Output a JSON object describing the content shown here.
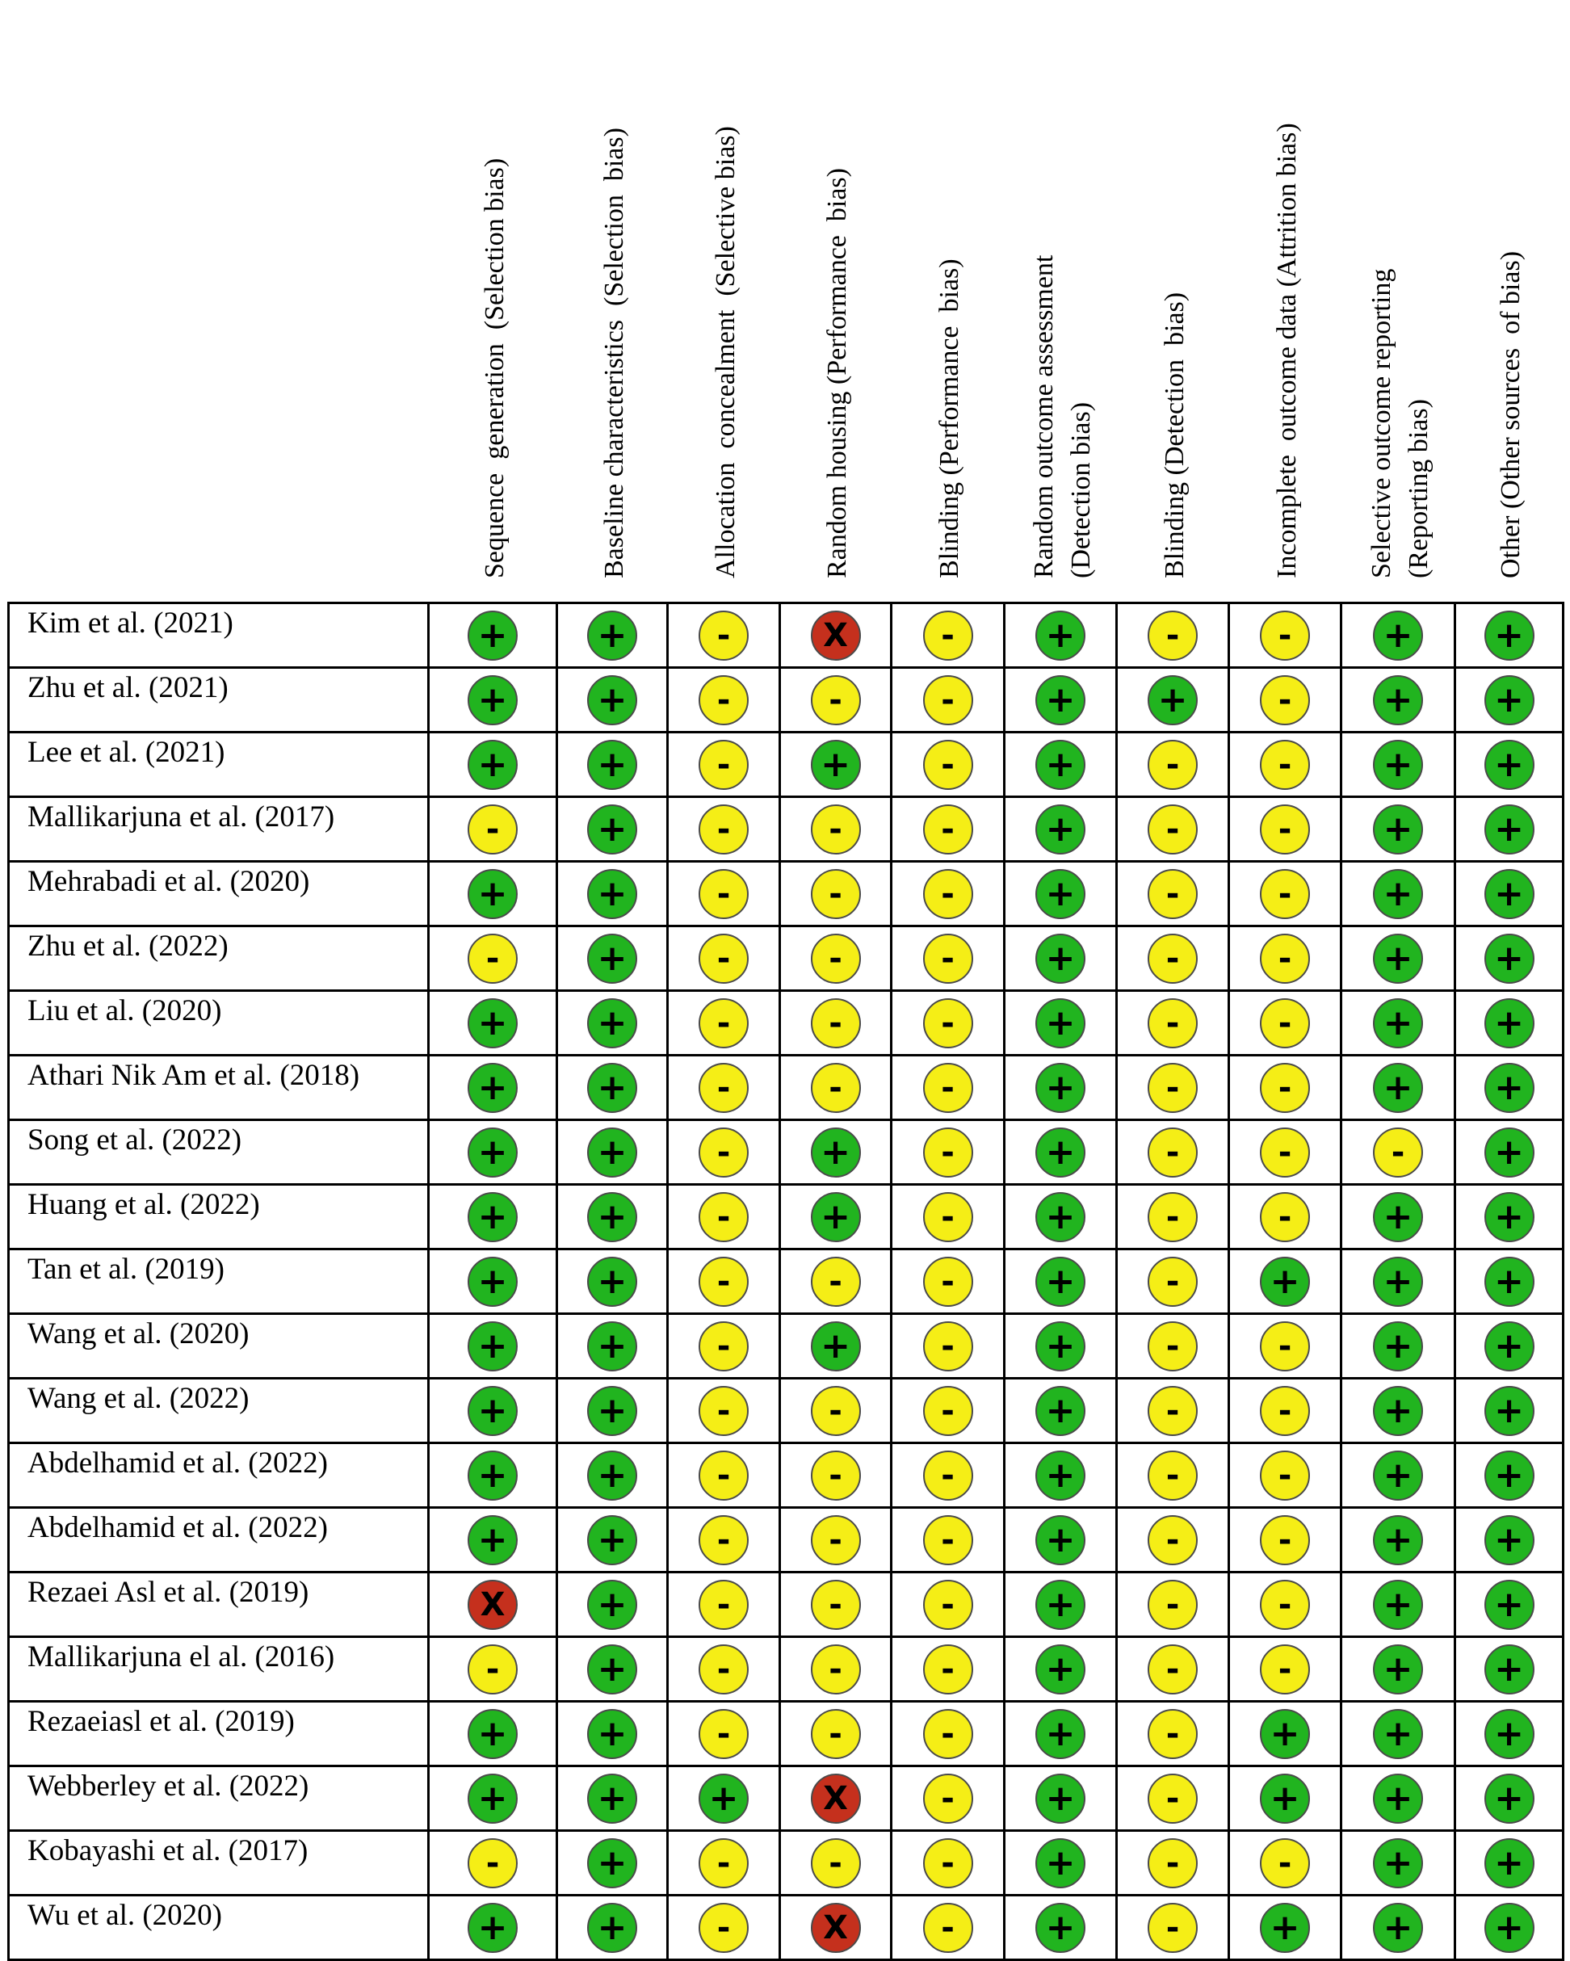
{
  "domains": [
    {
      "line1": "Sequence  generation  (Selection bias)",
      "line2": ""
    },
    {
      "line1": "Baseline characteristics  (Selection  bias)",
      "line2": ""
    },
    {
      "line1": "Allocation  concealment  (Selective bias)",
      "line2": ""
    },
    {
      "line1": "Random housing (Performance  bias)",
      "line2": ""
    },
    {
      "line1": "Blinding (Performance  bias)",
      "line2": ""
    },
    {
      "line1": "Random outcome assessment",
      "line2": "(Detection bias)"
    },
    {
      "line1": "Blinding (Detection  bias)",
      "line2": ""
    },
    {
      "line1": "Incomplete  outcome data (Attrition bias)",
      "line2": ""
    },
    {
      "line1": "Selective outcome reporting",
      "line2": "(Reporting bias)"
    },
    {
      "line1": "Other (Other sources  of bias)",
      "line2": ""
    }
  ],
  "symbols": {
    "low": "+",
    "unclear": "-",
    "high": "X"
  },
  "colors": {
    "low": "#21b41f",
    "unclear": "#f5ee16",
    "high": "#c5301d"
  },
  "studies": [
    {
      "name": "Kim et al. (2021)",
      "ratings": [
        "low",
        "low",
        "unclear",
        "high",
        "unclear",
        "low",
        "unclear",
        "unclear",
        "low",
        "low"
      ]
    },
    {
      "name": "Zhu et al. (2021)",
      "ratings": [
        "low",
        "low",
        "unclear",
        "unclear",
        "unclear",
        "low",
        "low",
        "unclear",
        "low",
        "low"
      ]
    },
    {
      "name": "Lee et al. (2021)",
      "ratings": [
        "low",
        "low",
        "unclear",
        "low",
        "unclear",
        "low",
        "unclear",
        "unclear",
        "low",
        "low"
      ]
    },
    {
      "name": "Mallikarjuna et al. (2017)",
      "ratings": [
        "unclear",
        "low",
        "unclear",
        "unclear",
        "unclear",
        "low",
        "unclear",
        "unclear",
        "low",
        "low"
      ]
    },
    {
      "name": "Mehrabadi et al. (2020)",
      "ratings": [
        "low",
        "low",
        "unclear",
        "unclear",
        "unclear",
        "low",
        "unclear",
        "unclear",
        "low",
        "low"
      ]
    },
    {
      "name": "Zhu et al. (2022)",
      "ratings": [
        "unclear",
        "low",
        "unclear",
        "unclear",
        "unclear",
        "low",
        "unclear",
        "unclear",
        "low",
        "low"
      ]
    },
    {
      "name": "Liu et al. (2020)",
      "ratings": [
        "low",
        "low",
        "unclear",
        "unclear",
        "unclear",
        "low",
        "unclear",
        "unclear",
        "low",
        "low"
      ]
    },
    {
      "name": "Athari Nik Am et al. (2018)",
      "ratings": [
        "low",
        "low",
        "unclear",
        "unclear",
        "unclear",
        "low",
        "unclear",
        "unclear",
        "low",
        "low"
      ]
    },
    {
      "name": "Song et al. (2022)",
      "ratings": [
        "low",
        "low",
        "unclear",
        "low",
        "unclear",
        "low",
        "unclear",
        "unclear",
        "unclear",
        "low"
      ]
    },
    {
      "name": "Huang et al. (2022)",
      "ratings": [
        "low",
        "low",
        "unclear",
        "low",
        "unclear",
        "low",
        "unclear",
        "unclear",
        "low",
        "low"
      ]
    },
    {
      "name": "Tan et al. (2019)",
      "ratings": [
        "low",
        "low",
        "unclear",
        "unclear",
        "unclear",
        "low",
        "unclear",
        "low",
        "low",
        "low"
      ]
    },
    {
      "name": "Wang et al. (2020)",
      "ratings": [
        "low",
        "low",
        "unclear",
        "low",
        "unclear",
        "low",
        "unclear",
        "unclear",
        "low",
        "low"
      ]
    },
    {
      "name": "Wang et al. (2022)",
      "ratings": [
        "low",
        "low",
        "unclear",
        "unclear",
        "unclear",
        "low",
        "unclear",
        "unclear",
        "low",
        "low"
      ]
    },
    {
      "name": "Abdelhamid et al. (2022)",
      "ratings": [
        "low",
        "low",
        "unclear",
        "unclear",
        "unclear",
        "low",
        "unclear",
        "unclear",
        "low",
        "low"
      ]
    },
    {
      "name": "Abdelhamid et al. (2022)",
      "ratings": [
        "low",
        "low",
        "unclear",
        "unclear",
        "unclear",
        "low",
        "unclear",
        "unclear",
        "low",
        "low"
      ]
    },
    {
      "name": "Rezaei Asl et al. (2019)",
      "ratings": [
        "high",
        "low",
        "unclear",
        "unclear",
        "unclear",
        "low",
        "unclear",
        "unclear",
        "low",
        "low"
      ]
    },
    {
      "name": "Mallikarjuna el al. (2016)",
      "ratings": [
        "unclear",
        "low",
        "unclear",
        "unclear",
        "unclear",
        "low",
        "unclear",
        "unclear",
        "low",
        "low"
      ]
    },
    {
      "name": "Rezaeiasl et al. (2019)",
      "ratings": [
        "low",
        "low",
        "unclear",
        "unclear",
        "unclear",
        "low",
        "unclear",
        "low",
        "low",
        "low"
      ]
    },
    {
      "name": "Webberley et al. (2022)",
      "ratings": [
        "low",
        "low",
        "low",
        "high",
        "unclear",
        "low",
        "unclear",
        "low",
        "low",
        "low"
      ]
    },
    {
      "name": "Kobayashi et al. (2017)",
      "ratings": [
        "unclear",
        "low",
        "unclear",
        "unclear",
        "unclear",
        "low",
        "unclear",
        "unclear",
        "low",
        "low"
      ]
    },
    {
      "name": "Wu et al. (2020)",
      "ratings": [
        "low",
        "low",
        "unclear",
        "high",
        "unclear",
        "low",
        "unclear",
        "low",
        "low",
        "low"
      ]
    }
  ]
}
